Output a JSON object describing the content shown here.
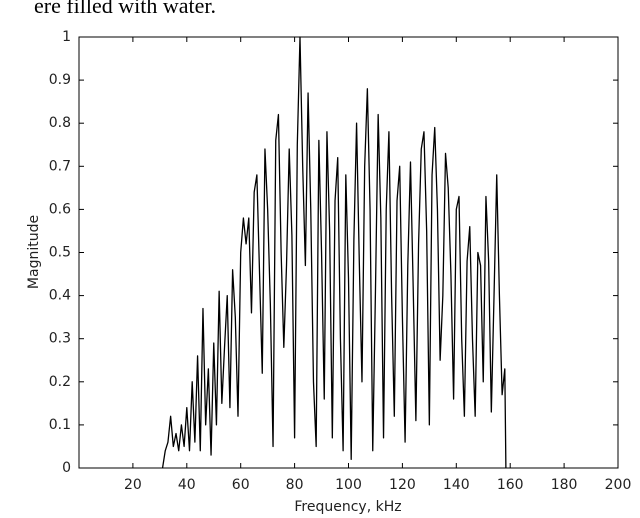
{
  "context_text": "ere filled with water.",
  "chart_data": {
    "type": "line",
    "x_label": "Frequency, kHz",
    "y_label": "Magnitude",
    "xlim": [
      0,
      200
    ],
    "xticks": [
      20,
      40,
      60,
      80,
      100,
      120,
      140,
      160,
      180,
      200
    ],
    "ylim": [
      0,
      1
    ],
    "yticks": [
      0,
      0.1,
      0.2,
      0.3,
      0.4,
      0.5,
      0.6,
      0.7,
      0.8,
      0.9,
      1
    ],
    "grid": false,
    "series": [
      {
        "color": "#000000",
        "x": [
          31,
          32,
          33,
          34,
          35,
          36,
          37,
          38,
          39,
          40,
          41,
          42,
          43,
          44,
          45,
          46,
          47,
          48,
          49,
          50,
          51,
          52,
          53,
          54,
          55,
          56,
          57,
          58,
          59,
          60,
          61,
          62,
          63,
          64,
          65,
          66,
          67,
          68,
          69,
          70,
          71,
          72,
          73,
          74,
          75,
          76,
          77,
          78,
          79,
          80,
          81,
          82,
          83,
          84,
          85,
          86,
          87,
          88,
          89,
          90,
          91,
          92,
          93,
          94,
          95,
          96,
          97,
          98,
          99,
          100,
          101,
          102,
          103,
          104,
          105,
          106,
          107,
          108,
          109,
          110,
          111,
          112,
          113,
          114,
          115,
          116,
          117,
          118,
          119,
          120,
          121,
          122,
          123,
          124,
          125,
          126,
          127,
          128,
          129,
          130,
          131,
          132,
          133,
          134,
          135,
          136,
          137,
          138,
          139,
          140,
          141,
          142,
          143,
          144,
          145,
          146,
          147,
          148,
          149,
          150,
          151,
          152,
          153,
          154,
          155,
          156,
          157,
          158,
          158.4
        ],
        "values": [
          0,
          0.04,
          0.06,
          0.12,
          0.05,
          0.08,
          0.04,
          0.1,
          0.05,
          0.14,
          0.04,
          0.2,
          0.06,
          0.26,
          0.04,
          0.37,
          0.1,
          0.23,
          0.03,
          0.29,
          0.1,
          0.41,
          0.15,
          0.28,
          0.4,
          0.14,
          0.46,
          0.35,
          0.12,
          0.5,
          0.58,
          0.52,
          0.58,
          0.36,
          0.64,
          0.68,
          0.45,
          0.22,
          0.74,
          0.6,
          0.38,
          0.05,
          0.76,
          0.82,
          0.5,
          0.28,
          0.47,
          0.74,
          0.54,
          0.07,
          0.75,
          1.0,
          0.7,
          0.47,
          0.87,
          0.6,
          0.2,
          0.05,
          0.76,
          0.5,
          0.16,
          0.78,
          0.55,
          0.07,
          0.62,
          0.72,
          0.3,
          0.04,
          0.68,
          0.44,
          0.02,
          0.53,
          0.8,
          0.48,
          0.2,
          0.7,
          0.88,
          0.6,
          0.04,
          0.41,
          0.82,
          0.58,
          0.07,
          0.6,
          0.78,
          0.4,
          0.12,
          0.62,
          0.7,
          0.35,
          0.06,
          0.47,
          0.71,
          0.42,
          0.11,
          0.52,
          0.74,
          0.78,
          0.55,
          0.1,
          0.68,
          0.79,
          0.6,
          0.25,
          0.4,
          0.73,
          0.65,
          0.45,
          0.16,
          0.6,
          0.63,
          0.3,
          0.12,
          0.48,
          0.56,
          0.3,
          0.12,
          0.5,
          0.47,
          0.2,
          0.63,
          0.48,
          0.13,
          0.4,
          0.68,
          0.4,
          0.17,
          0.23,
          0
        ]
      }
    ]
  }
}
